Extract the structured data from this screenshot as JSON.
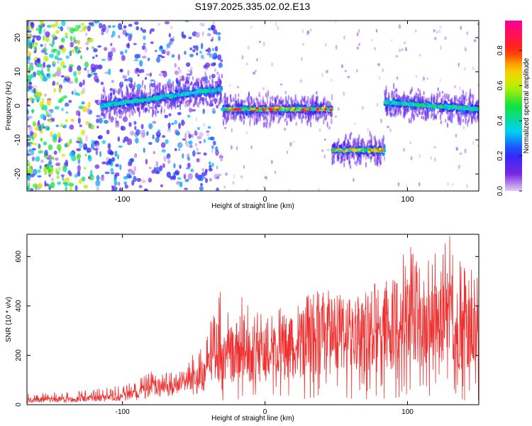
{
  "title": "S197.2025.335.02.02.E13",
  "colors": {
    "snr_line": "#ee3030",
    "signal_core": "#18e0d0",
    "signal_peak": "#ff2010",
    "background_noise": "#7a2ae0"
  },
  "chart_data": [
    {
      "type": "heatmap",
      "xlabel": "Height of straight line (km)",
      "ylabel": "Frequency (Hz)",
      "xlim": [
        -167,
        150
      ],
      "ylim": [
        -25,
        25
      ],
      "xticks": [
        -100,
        0,
        100
      ],
      "yticks": [
        -20,
        -10,
        0,
        10,
        20
      ],
      "colorbar": {
        "label": "Normalized spectral amplitude",
        "range": [
          0,
          0.97
        ],
        "ticks": [
          "0.0",
          "0.2",
          "0.4",
          "0.6",
          "0.8"
        ],
        "tick_values": [
          0.0,
          0.2,
          0.4,
          0.6,
          0.8
        ]
      },
      "segments": [
        {
          "x": [
            -115,
            -30
          ],
          "freq_start": 0,
          "freq_end": 5,
          "peak_amplitude": 0.45
        },
        {
          "x": [
            -30,
            47
          ],
          "freq_start": -1,
          "freq_end": -1,
          "peak_amplitude": 0.95
        },
        {
          "x": [
            47,
            84
          ],
          "freq_start": -13,
          "freq_end": -13,
          "peak_amplitude": 0.8
        },
        {
          "x": [
            84,
            150
          ],
          "freq_start": 1,
          "freq_end": -1,
          "peak_amplitude": 0.5
        }
      ],
      "noise_region_x": [
        -167,
        -70
      ]
    },
    {
      "type": "line",
      "xlabel": "Height of straight line (km)",
      "ylabel": "SNR (10 * v/v)",
      "xlim": [
        -167,
        150
      ],
      "ylim": [
        0,
        690
      ],
      "xticks": [
        -100,
        0,
        100
      ],
      "yticks": [
        0,
        200,
        400,
        600
      ],
      "series": [
        {
          "x": [
            -167,
            -150,
            -130,
            -110,
            -90,
            -80,
            -70,
            -60,
            -50,
            -40,
            -30,
            -20,
            -10,
            0,
            10,
            20,
            30,
            40,
            50,
            60,
            70,
            80,
            90,
            100,
            110,
            120,
            130,
            140,
            150
          ],
          "values": [
            20,
            22,
            25,
            30,
            45,
            70,
            80,
            75,
            100,
            150,
            200,
            240,
            230,
            220,
            230,
            260,
            270,
            300,
            320,
            300,
            300,
            320,
            360,
            350,
            330,
            350,
            370,
            330,
            300
          ],
          "max": [
            45,
            50,
            55,
            70,
            100,
            140,
            130,
            135,
            210,
            340,
            480,
            460,
            410,
            370,
            390,
            420,
            450,
            480,
            470,
            430,
            450,
            520,
            600,
            660,
            580,
            620,
            690,
            620,
            560
          ]
        }
      ]
    }
  ]
}
